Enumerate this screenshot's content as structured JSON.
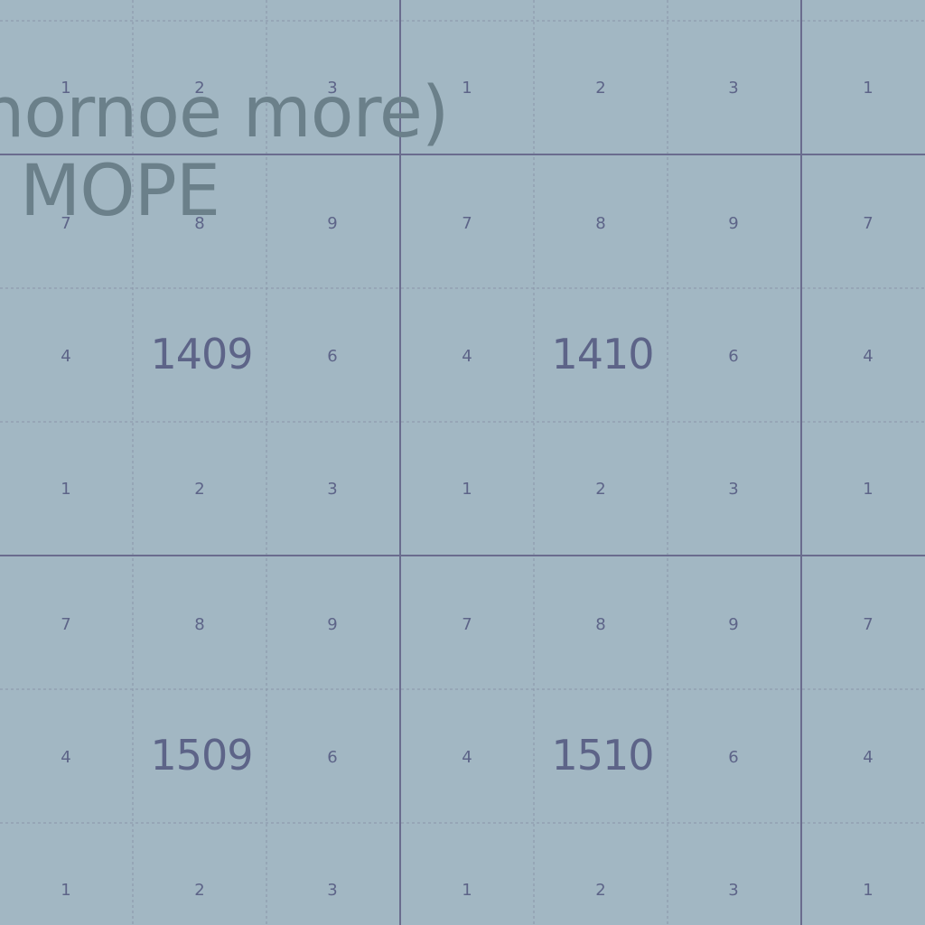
{
  "grid": {
    "keypad_rows": [
      [
        "7",
        "8",
        "9"
      ],
      [
        "4",
        "",
        "6"
      ],
      [
        "1",
        "2",
        "3"
      ]
    ]
  },
  "squares": [
    {
      "id": "1409",
      "label": "1409"
    },
    {
      "id": "1410",
      "label": "1410"
    },
    {
      "id": "1509",
      "label": "1509"
    },
    {
      "id": "1510",
      "label": "1510"
    }
  ],
  "place_labels": {
    "line1": "hornoe more)",
    "line2": "MOPE"
  },
  "colors": {
    "background": "#a2b7c3",
    "major_grid": "#6a6c8e",
    "minor_grid": "#8a96a8",
    "grid_text": "#5d6488",
    "place_text": "#6b808a"
  }
}
